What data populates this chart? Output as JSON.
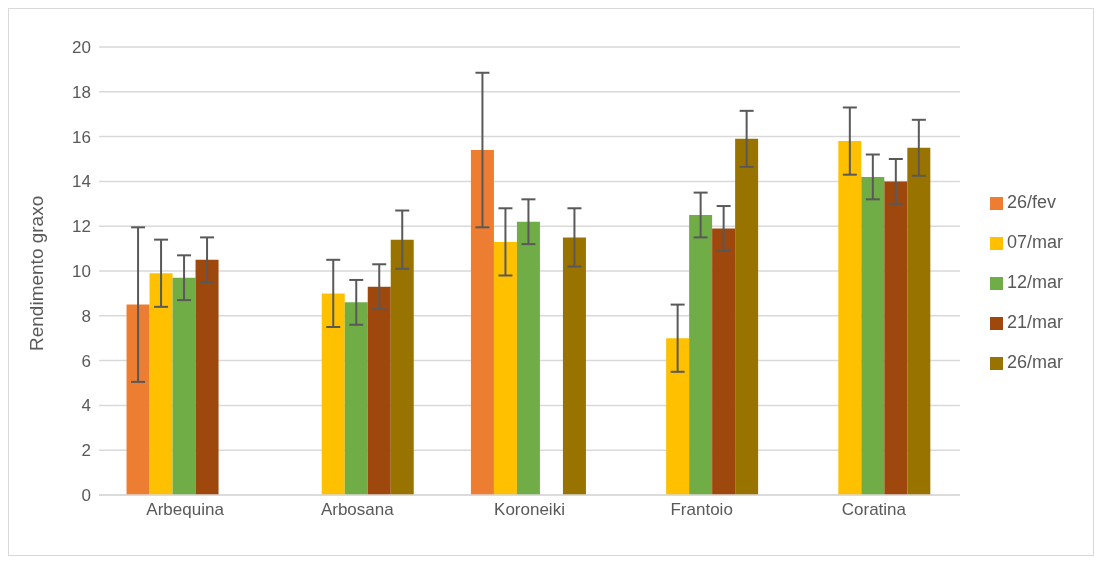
{
  "chart_data": {
    "type": "bar",
    "ylabel": "Rendimento graxo",
    "categories": [
      "Arbequina",
      "Arbosana",
      "Koroneiki",
      "Frantoio",
      "Coratina"
    ],
    "series": [
      {
        "name": "26/fev",
        "color": "#ed7d31",
        "values": [
          8.5,
          null,
          15.4,
          null,
          null
        ],
        "errors": [
          3.45,
          null,
          3.45,
          null,
          null
        ]
      },
      {
        "name": "07/mar",
        "color": "#ffc000",
        "values": [
          9.9,
          9.0,
          11.3,
          7.0,
          15.8
        ],
        "errors": [
          1.5,
          1.5,
          1.5,
          1.5,
          1.5
        ]
      },
      {
        "name": "12/mar",
        "color": "#70ad47",
        "values": [
          9.7,
          8.6,
          12.2,
          12.5,
          14.2
        ],
        "errors": [
          1.0,
          1.0,
          1.0,
          1.0,
          1.0
        ]
      },
      {
        "name": "21/mar",
        "color": "#9e480e",
        "values": [
          10.5,
          9.3,
          null,
          11.9,
          14.0
        ],
        "errors": [
          1.0,
          1.0,
          null,
          1.0,
          1.0
        ]
      },
      {
        "name": "26/mar",
        "color": "#997300",
        "values": [
          null,
          11.4,
          11.5,
          15.9,
          15.5
        ],
        "errors": [
          null,
          1.3,
          1.3,
          1.25,
          1.25
        ]
      }
    ],
    "ylim": [
      0,
      20
    ],
    "yticks": [
      0,
      2,
      4,
      6,
      8,
      10,
      12,
      14,
      16,
      18,
      20
    ],
    "grid": "y",
    "legend": "right"
  }
}
